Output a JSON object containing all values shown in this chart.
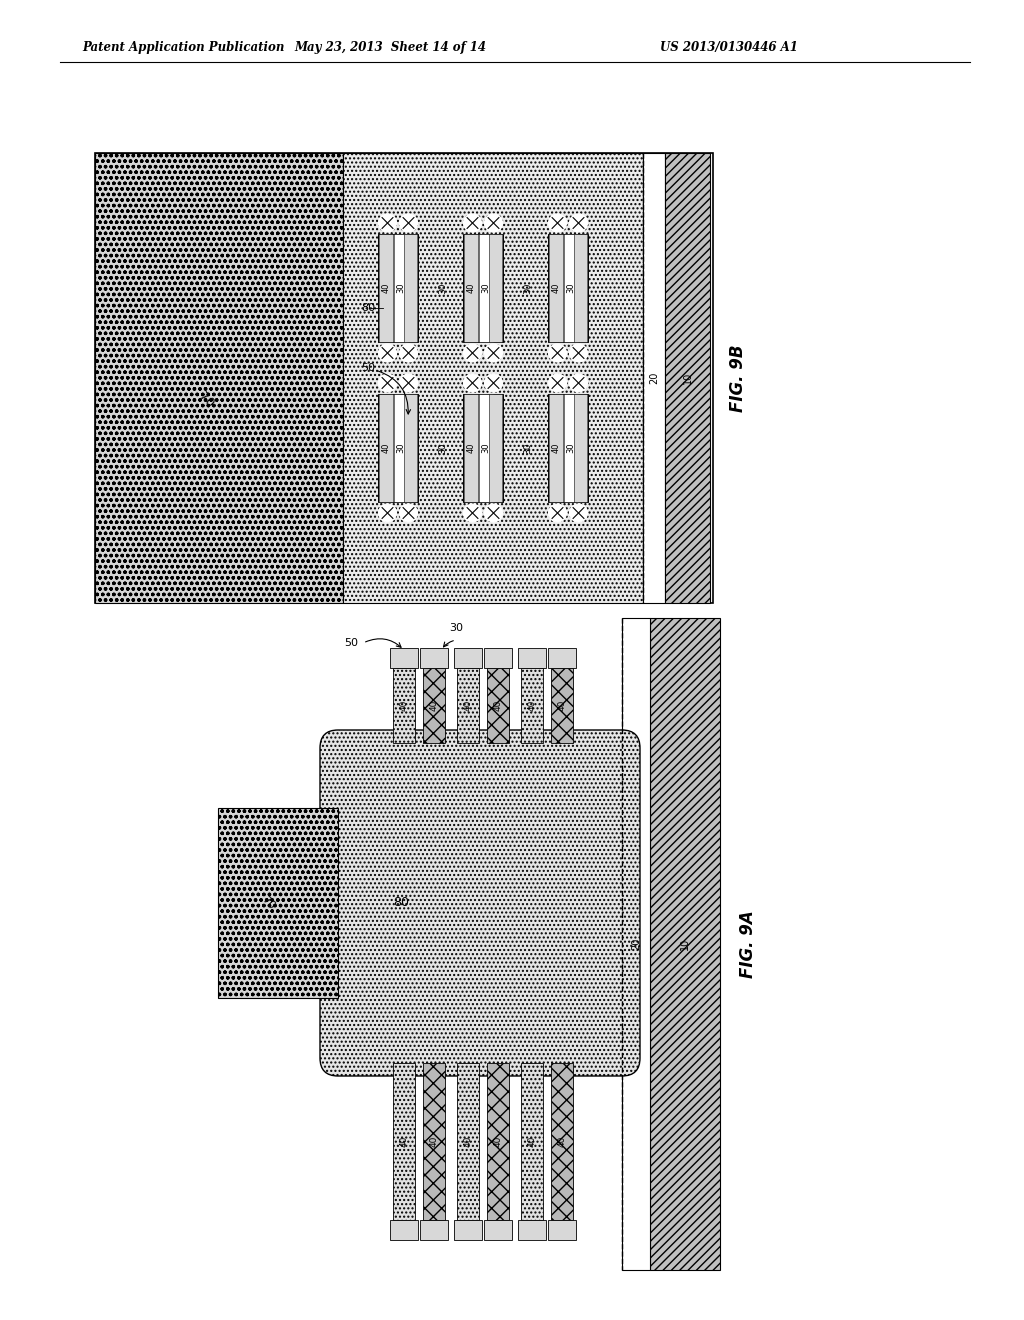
{
  "header1": "Patent Application Publication",
  "header2": "May 23, 2013  Sheet 14 of 14",
  "header3": "US 2013/0130446 A1",
  "fig9b_label": "FIG. 9B",
  "fig9a_label": "FIG. 9A"
}
